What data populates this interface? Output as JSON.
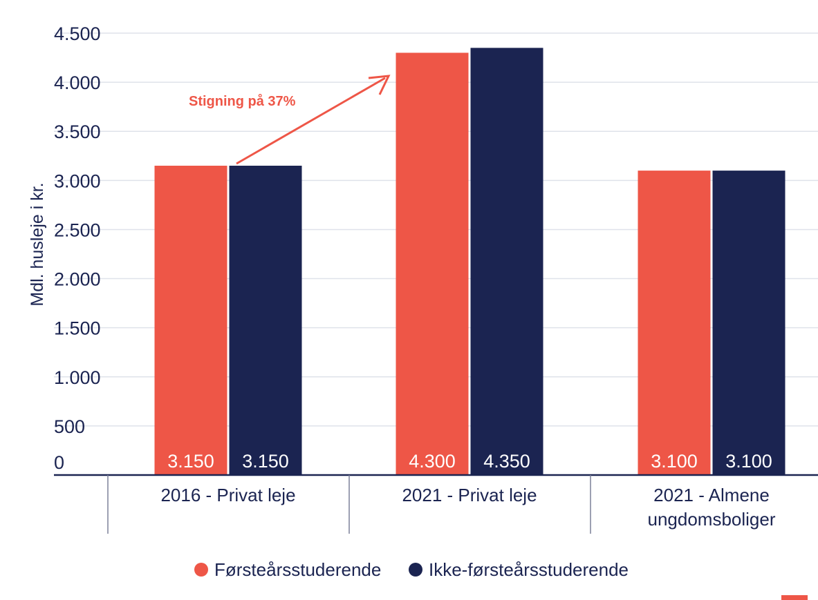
{
  "chart_data": {
    "type": "bar",
    "ylabel": "Mdl. husleje i kr.",
    "ylim": [
      0,
      4500
    ],
    "yticks": [
      0,
      500,
      1000,
      1500,
      2000,
      2500,
      3000,
      3500,
      4000,
      4500
    ],
    "ytick_labels": [
      "0",
      "500",
      "1.000",
      "1.500",
      "2.000",
      "2.500",
      "3.000",
      "3.500",
      "4.000",
      "4.500"
    ],
    "grid": true,
    "legend_position": "bottom",
    "categories": [
      [
        "2016 - Privat leje"
      ],
      [
        "2021 - Privat leje"
      ],
      [
        "2021 - Almene",
        "ungdomsboliger"
      ]
    ],
    "series": [
      {
        "name": "Førsteårsstuderende",
        "color": "#ee5647",
        "values": [
          3150,
          4300,
          3100
        ],
        "labels": [
          "3.150",
          "4.300",
          "3.100"
        ]
      },
      {
        "name": "Ikke-førsteårsstuderende",
        "color": "#1b2451",
        "values": [
          3150,
          4350,
          3100
        ],
        "labels": [
          "3.150",
          "4.350",
          "3.100"
        ]
      }
    ],
    "annotation": {
      "text": "Stigning på 37%",
      "color": "#ee5647"
    }
  }
}
